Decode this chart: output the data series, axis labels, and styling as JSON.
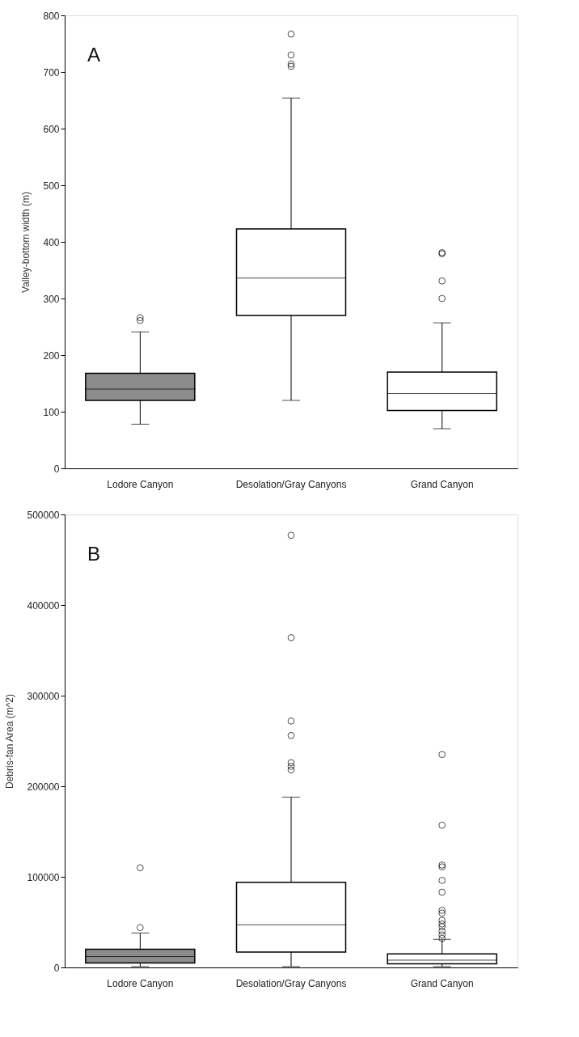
{
  "chart_data": [
    {
      "type": "box",
      "ylabel": "Valley-bottom width (m)",
      "annotations": [
        "A"
      ],
      "categories": [
        "Lodore Canyon",
        "Desolation/Gray Canyons",
        "Grand Canyon"
      ],
      "colors": [
        "#8c8c8c",
        "#ffffff",
        "#ffffff"
      ],
      "boxes": [
        {
          "low": 78,
          "q1": 120,
          "median": 140,
          "q3": 168,
          "high": 241,
          "outliers": [
            261,
            266
          ]
        },
        {
          "low": 120,
          "q1": 270,
          "median": 336,
          "q3": 423,
          "high": 654,
          "outliers": [
            710,
            714,
            730,
            767
          ]
        },
        {
          "low": 70,
          "q1": 102,
          "median": 132,
          "q3": 170,
          "high": 257,
          "outliers": [
            300,
            331,
            379,
            381
          ]
        }
      ],
      "ylim": [
        0,
        800
      ],
      "yticks": [
        0,
        100,
        200,
        300,
        400,
        500,
        600,
        700,
        800
      ],
      "grid": false
    },
    {
      "type": "box",
      "ylabel": "Debris-fan Area (m^2)",
      "annotations": [
        "B"
      ],
      "categories": [
        "Lodore Canyon",
        "Desolation/Gray Canyons",
        "Grand Canyon"
      ],
      "colors": [
        "#8c8c8c",
        "#ffffff",
        "#ffffff"
      ],
      "boxes": [
        {
          "low": 1000,
          "q1": 5000,
          "median": 12000,
          "q3": 20000,
          "high": 38000,
          "outliers": [
            44000,
            110000
          ]
        },
        {
          "low": 1000,
          "q1": 17000,
          "median": 47000,
          "q3": 94000,
          "high": 188000,
          "outliers": [
            218000,
            222000,
            226000,
            256000,
            272000,
            364000,
            477000
          ]
        },
        {
          "low": 1000,
          "q1": 4000,
          "median": 8000,
          "q3": 15000,
          "high": 31000,
          "outliers": [
            32000,
            36000,
            40000,
            45000,
            48000,
            52000,
            60000,
            63000,
            83000,
            96000,
            111000,
            113000,
            157000,
            235000
          ]
        }
      ],
      "ylim": [
        0,
        500000
      ],
      "yticks": [
        0,
        100000,
        200000,
        300000,
        400000,
        500000
      ],
      "grid": false
    }
  ]
}
